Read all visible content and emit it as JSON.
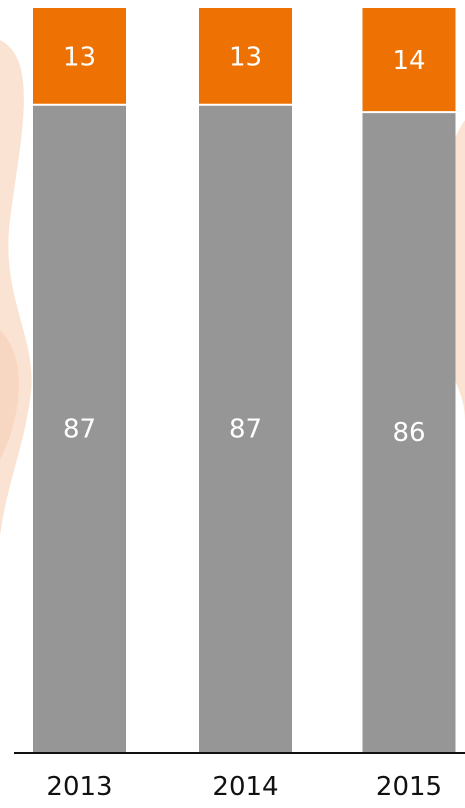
{
  "chart_data": {
    "type": "bar",
    "stacked": true,
    "categories": [
      "2013",
      "2014",
      "2015"
    ],
    "series": [
      {
        "values": [
          87,
          87,
          86
        ],
        "color": "#969696"
      },
      {
        "values": [
          13,
          13,
          14
        ],
        "color": "#ee7203"
      }
    ],
    "ylim": [
      0,
      100
    ],
    "grid": false,
    "legend": "none",
    "title": "",
    "xlabel": "",
    "ylabel": ""
  },
  "colors": {
    "background_decor": "#fbe3d3",
    "axis": "#111111",
    "segment_label": "#ffffff",
    "separator": "#ffffff"
  }
}
